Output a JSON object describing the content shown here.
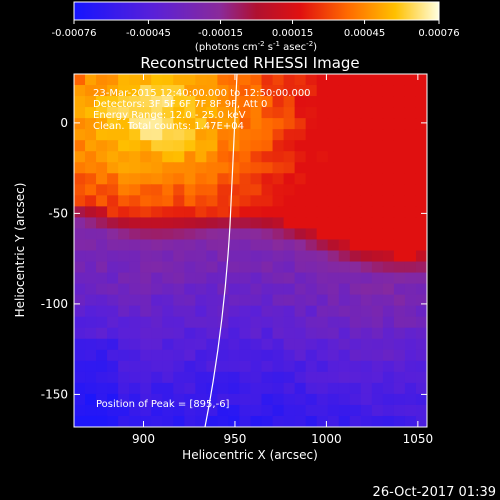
{
  "colorbar": {
    "ticks": [
      "-0.00076",
      "-0.00045",
      "-0.00015",
      "0.00015",
      "0.00045",
      "0.00076"
    ],
    "min": -0.00076,
    "max": 0.00076,
    "unit_label": "(photons cm",
    "unit_exp1": "-2",
    "unit_mid": " s",
    "unit_exp2": "-1",
    "unit_mid2": " asec",
    "unit_exp3": "-2",
    "unit_close": ")"
  },
  "chart_data": {
    "type": "heatmap",
    "title": "Reconstructed RHESSI Image",
    "xlabel": "Heliocentric X (arcsec)",
    "ylabel": "Heliocentric Y (arcsec)",
    "xlim": [
      862,
      1055
    ],
    "ylim": [
      -168,
      27
    ],
    "xticks": [
      900,
      950,
      1000,
      1050
    ],
    "yticks": [
      0,
      -50,
      -100,
      -150
    ],
    "annotations": [
      "23-Mar-2015 12:40:00.000 to 12:50:00.000",
      "Detectors: 3F 5F 6F 7F 8F 9F, Att 0",
      "Energy Range: 12.0 - 25.0 keV",
      "Clean. Total counts: 1.47E+04"
    ],
    "peak_label": "Position of Peak = [895,-6]",
    "peak": [
      895,
      -6
    ],
    "colormap": "blue-purple-red-yellow-white",
    "limb_line": true
  },
  "timestamp": "26-Oct-2017 01:39"
}
